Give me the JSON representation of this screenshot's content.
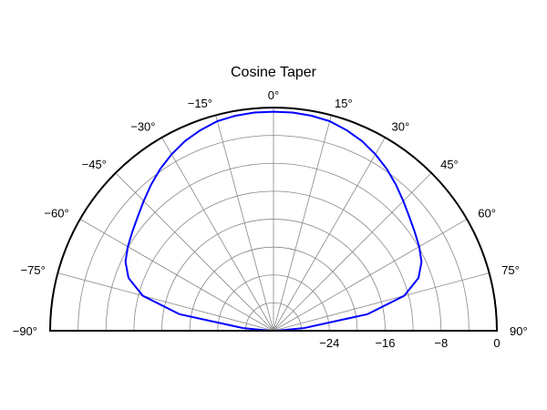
{
  "chart_data": {
    "type": "line",
    "subtype": "polar-half",
    "title": "Cosine Taper",
    "angle_range_deg": [
      -90,
      90
    ],
    "angle_ticks": [
      -90,
      -75,
      -60,
      -45,
      -30,
      -15,
      0,
      15,
      30,
      45,
      60,
      75,
      90
    ],
    "angle_tick_labels": [
      "−90°",
      "−75°",
      "−60°",
      "−45°",
      "−30°",
      "−15°",
      "0°",
      "15°",
      "30°",
      "45°",
      "60°",
      "75°",
      "90°"
    ],
    "radial_range_db": [
      -32,
      0
    ],
    "radial_ticks": [
      -24,
      -16,
      -8,
      0
    ],
    "radial_tick_labels": [
      "−24",
      "−16",
      "−8",
      "0"
    ],
    "grid": true,
    "series": [
      {
        "color": "#0000ff",
        "angle_deg": [
          -90,
          -85,
          -80,
          -75,
          -70,
          -65,
          -60,
          -55,
          -50,
          -45,
          -40,
          -35,
          -30,
          -25,
          -20,
          -15,
          -10,
          -5,
          0,
          5,
          10,
          15,
          20,
          25,
          30,
          35,
          40,
          45,
          50,
          55,
          60,
          65,
          70,
          75,
          80,
          85,
          90
        ],
        "value_db": [
          -31.6,
          -27.6,
          -18.3,
          -12.6,
          -9.9,
          -8.6,
          -7.9,
          -7.3,
          -6.6,
          -5.7,
          -4.7,
          -3.7,
          -2.8,
          -2.0,
          -1.4,
          -0.9,
          -0.7,
          -0.6,
          -0.6,
          -0.6,
          -0.7,
          -0.9,
          -1.4,
          -2.0,
          -2.8,
          -3.7,
          -4.7,
          -5.7,
          -6.6,
          -7.3,
          -7.9,
          -8.6,
          -9.9,
          -12.6,
          -18.3,
          -27.6,
          -31.6
        ]
      }
    ]
  }
}
